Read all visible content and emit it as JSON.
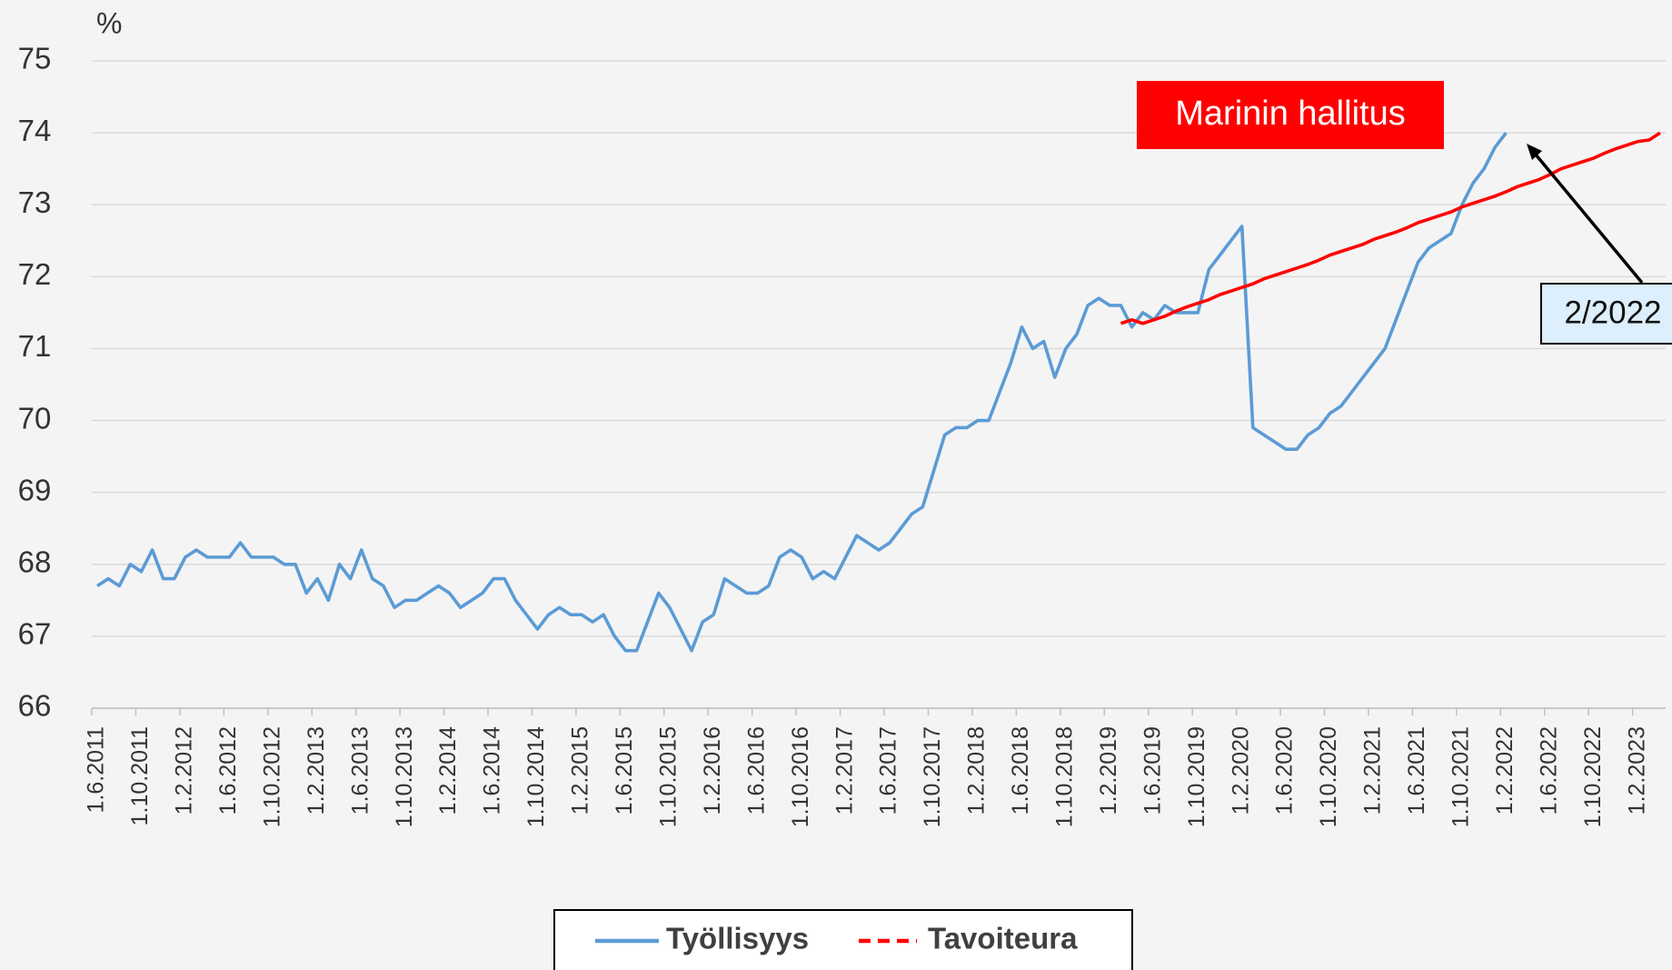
{
  "chart_data": {
    "type": "line",
    "ylabel": "%",
    "categories": [
      "1.6.2011",
      null,
      null,
      null,
      "1.10.2011",
      null,
      null,
      null,
      "1.2.2012",
      null,
      null,
      null,
      "1.6.2012",
      null,
      null,
      null,
      "1.10.2012",
      null,
      null,
      null,
      "1.2.2013",
      null,
      null,
      null,
      "1.6.2013",
      null,
      null,
      null,
      "1.10.2013",
      null,
      null,
      null,
      "1.2.2014",
      null,
      null,
      null,
      "1.6.2014",
      null,
      null,
      null,
      "1.10.2014",
      null,
      null,
      null,
      "1.2.2015",
      null,
      null,
      null,
      "1.6.2015",
      null,
      null,
      null,
      "1.10.2015",
      null,
      null,
      null,
      "1.2.2016",
      null,
      null,
      null,
      "1.6.2016",
      null,
      null,
      null,
      "1.10.2016",
      null,
      null,
      null,
      "1.2.2017",
      null,
      null,
      null,
      "1.6.2017",
      null,
      null,
      null,
      "1.10.2017",
      null,
      null,
      null,
      "1.2.2018",
      null,
      null,
      null,
      "1.6.2018",
      null,
      null,
      null,
      "1.10.2018",
      null,
      null,
      null,
      "1.2.2019",
      null,
      null,
      null,
      "1.6.2019",
      null,
      null,
      null,
      "1.10.2019",
      null,
      null,
      null,
      "1.2.2020",
      null,
      null,
      null,
      "1.6.2020",
      null,
      null,
      null,
      "1.10.2020",
      null,
      null,
      null,
      "1.2.2021",
      null,
      null,
      null,
      "1.6.2021",
      null,
      null,
      null,
      "1.10.2021",
      null,
      null,
      null,
      "1.2.2022",
      null,
      null,
      null,
      "1.6.2022",
      null,
      null,
      null,
      "1.10.2022",
      null,
      null,
      null,
      "1.2.2023",
      null,
      null
    ],
    "series": [
      {
        "name": "Työllisyys",
        "color": "#5b9bd5",
        "legend_line": "solid",
        "values": [
          67.7,
          67.8,
          67.7,
          68.0,
          67.9,
          68.2,
          67.8,
          67.8,
          68.1,
          68.2,
          68.1,
          68.1,
          68.1,
          68.3,
          68.1,
          68.1,
          68.1,
          68.0,
          68.0,
          67.6,
          67.8,
          67.5,
          68.0,
          67.8,
          68.2,
          67.8,
          67.7,
          67.4,
          67.5,
          67.5,
          67.6,
          67.7,
          67.6,
          67.4,
          67.5,
          67.6,
          67.8,
          67.8,
          67.5,
          67.3,
          67.1,
          67.3,
          67.4,
          67.3,
          67.3,
          67.2,
          67.3,
          67.0,
          66.8,
          66.8,
          67.2,
          67.6,
          67.4,
          67.1,
          66.8,
          67.2,
          67.3,
          67.8,
          67.7,
          67.6,
          67.6,
          67.7,
          68.1,
          68.2,
          68.1,
          67.8,
          67.9,
          67.8,
          68.1,
          68.4,
          68.3,
          68.2,
          68.3,
          68.5,
          68.7,
          68.8,
          69.3,
          69.8,
          69.9,
          69.9,
          70.0,
          70.0,
          70.4,
          70.8,
          71.3,
          71.0,
          71.1,
          70.6,
          71.0,
          71.2,
          71.6,
          71.7,
          71.6,
          71.6,
          71.3,
          71.5,
          71.4,
          71.6,
          71.5,
          71.5,
          71.5,
          72.1,
          72.3,
          72.5,
          72.7,
          69.9,
          69.8,
          69.7,
          69.6,
          69.6,
          69.8,
          69.9,
          70.1,
          70.2,
          70.4,
          70.6,
          70.8,
          71.0,
          71.4,
          71.8,
          72.2,
          72.4,
          72.5,
          72.6,
          73.0,
          73.3,
          73.5,
          73.8,
          74.0,
          null,
          null,
          null,
          null,
          null,
          null,
          null,
          null,
          null,
          null,
          null,
          null,
          null,
          null
        ]
      },
      {
        "name": "Tavoiteura",
        "color": "#ff0000",
        "legend_line": "dashed",
        "values": [
          null,
          null,
          null,
          null,
          null,
          null,
          null,
          null,
          null,
          null,
          null,
          null,
          null,
          null,
          null,
          null,
          null,
          null,
          null,
          null,
          null,
          null,
          null,
          null,
          null,
          null,
          null,
          null,
          null,
          null,
          null,
          null,
          null,
          null,
          null,
          null,
          null,
          null,
          null,
          null,
          null,
          null,
          null,
          null,
          null,
          null,
          null,
          null,
          null,
          null,
          null,
          null,
          null,
          null,
          null,
          null,
          null,
          null,
          null,
          null,
          null,
          null,
          null,
          null,
          null,
          null,
          null,
          null,
          null,
          null,
          null,
          null,
          null,
          null,
          null,
          null,
          null,
          null,
          null,
          null,
          null,
          null,
          null,
          null,
          null,
          null,
          null,
          null,
          null,
          null,
          null,
          null,
          null,
          71.35,
          71.4,
          71.35,
          71.4,
          71.45,
          71.52,
          71.58,
          71.63,
          71.68,
          71.75,
          71.8,
          71.85,
          71.9,
          71.97,
          72.02,
          72.07,
          72.12,
          72.17,
          72.23,
          72.3,
          72.35,
          72.4,
          72.45,
          72.52,
          72.57,
          72.62,
          72.68,
          72.75,
          72.8,
          72.85,
          72.9,
          72.97,
          73.02,
          73.07,
          73.12,
          73.18,
          73.25,
          73.3,
          73.35,
          73.42,
          73.5,
          73.55,
          73.6,
          73.65,
          73.72,
          73.78,
          73.83,
          73.88,
          73.9,
          74.0
        ]
      }
    ],
    "ylim": [
      66,
      75
    ],
    "yticks": [
      66,
      67,
      68,
      69,
      70,
      71,
      72,
      73,
      74,
      75
    ],
    "grid": true,
    "annotations": [
      {
        "text": "Marinin hallitus"
      },
      {
        "text": "2/2022"
      }
    ],
    "legend": "bottom"
  }
}
